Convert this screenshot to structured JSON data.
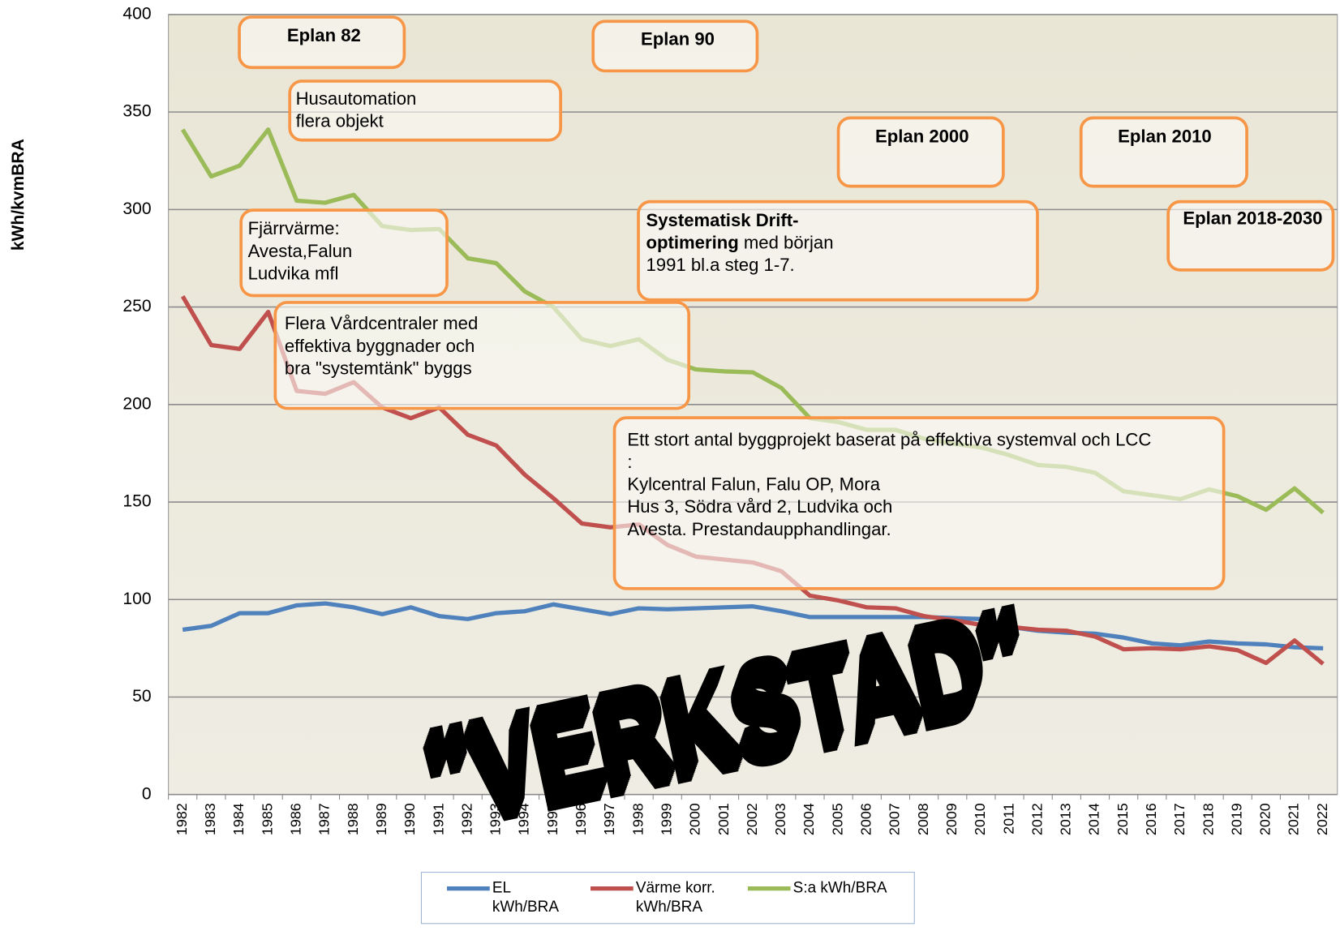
{
  "chart_data": {
    "type": "line",
    "y_label": "kWh/kvmBRA",
    "categories": [
      "1982",
      "1983",
      "1984",
      "1985",
      "1986",
      "1987",
      "1988",
      "1989",
      "1990",
      "1991",
      "1992",
      "1993",
      "1994",
      "1995",
      "1996",
      "1997",
      "1998",
      "1999",
      "2000",
      "2001",
      "2002",
      "2003",
      "2004",
      "2005",
      "2006",
      "2007",
      "2008",
      "2009",
      "2010",
      "2011",
      "2012",
      "2013",
      "2014",
      "2015",
      "2016",
      "2017",
      "2018",
      "2019",
      "2020",
      "2021",
      "2022"
    ],
    "series": [
      {
        "name": "EL\nkWh/BRA",
        "color": "#4f81bd",
        "values": [
          84.5,
          86.5,
          93,
          93,
          97,
          98,
          96,
          92.5,
          96,
          91.5,
          90,
          93,
          94,
          97.5,
          95,
          92.5,
          95.5,
          95,
          95.5,
          96,
          96.5,
          94,
          91,
          91,
          91,
          91,
          91,
          90.5,
          90,
          86,
          84,
          83,
          82.5,
          80.5,
          77.5,
          76.5,
          78.5,
          77.5,
          77,
          75.5,
          75
        ]
      },
      {
        "name": "Värme korr.\nkWh/BRA",
        "color": "#c0504d",
        "values": [
          255.5,
          230.5,
          228.5,
          247.5,
          207,
          205.5,
          211.5,
          198.5,
          193,
          198.5,
          184.5,
          179,
          164,
          152,
          139,
          137,
          138.5,
          128,
          122,
          120.5,
          119,
          114.5,
          102,
          99.5,
          96,
          95.5,
          91.5,
          89.5,
          87,
          86,
          84.5,
          84,
          81,
          74.5,
          75,
          74.5,
          76,
          74,
          67.5,
          79,
          67
        ]
      },
      {
        "name": "S:a kWh/BRA",
        "color": "#9bbb59",
        "values": [
          341,
          317,
          322.5,
          341,
          304.5,
          303.5,
          307.5,
          291.5,
          289.5,
          290,
          275,
          272.5,
          258,
          250,
          233.5,
          230,
          233.5,
          223,
          218,
          217,
          216.5,
          208.5,
          193,
          191,
          187,
          187,
          182.5,
          180,
          178,
          174,
          169,
          168,
          165,
          155.5,
          153.5,
          151.5,
          156.5,
          153,
          146,
          157,
          144.5
        ]
      }
    ],
    "ylim": [
      0,
      400
    ],
    "yticks": [
      0,
      50,
      100,
      150,
      200,
      250,
      300,
      350,
      400
    ],
    "grid": true,
    "annotations": [
      {
        "bold": true,
        "lines": [
          "Eplan 82"
        ]
      },
      {
        "bold": true,
        "lines": [
          "Eplan 90"
        ]
      },
      {
        "lines": [
          "Husautomation",
          "flera objekt"
        ]
      },
      {
        "bold": true,
        "lines": [
          "Eplan 2000"
        ]
      },
      {
        "bold": true,
        "lines": [
          "Eplan 2010"
        ]
      },
      {
        "bold": true,
        "lines": [
          "Eplan 2018-2030"
        ]
      },
      {
        "lines": [
          "Fjärrvärme:",
          "Avesta,Falun",
          "Ludvika  mfl"
        ]
      },
      {
        "lines": [
          [
            {
              "text": "Systematisk Drift-",
              "bold": true
            }
          ],
          [
            {
              "text": "optimering",
              "bold": true
            },
            {
              "text": " med början"
            }
          ],
          "1991 bl.a steg 1-7."
        ]
      },
      {
        "lines": [
          "Flera Vårdcentraler med",
          "effektiva byggnader och",
          "bra \"systemtänk\" byggs"
        ]
      },
      {
        "lines": [
          "Ett stort antal byggprojekt baserat  på effektiva systemval och LCC",
          ":",
          "Kylcentral Falun,  Falu OP, Mora",
          "Hus  3, Södra vård 2, Ludvika  och",
          "Avesta. Prestandaupphandlingar."
        ]
      }
    ],
    "stamp": "\"VERKSTAD\""
  }
}
